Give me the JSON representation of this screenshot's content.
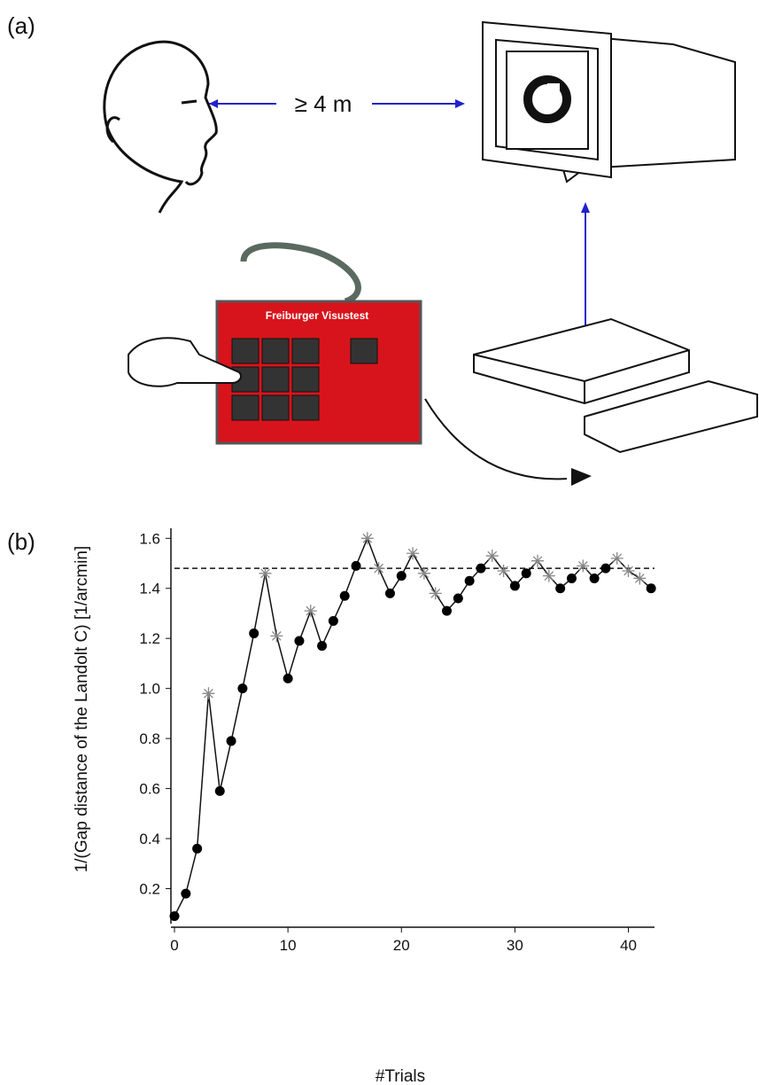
{
  "panel_a": {
    "label": "(a)",
    "distance": "≥ 4 m",
    "keypad_label": "Freiburger Visustest"
  },
  "panel_b": {
    "label": "(b)"
  },
  "chart_data": {
    "type": "line",
    "x_label": "#Trials",
    "y_label": "1/(Gap distance of the Landolt C) [1/arcmin]",
    "x": [
      0,
      1,
      2,
      3,
      4,
      5,
      6,
      7,
      8,
      9,
      10,
      11,
      12,
      13,
      14,
      15,
      16,
      17,
      18,
      19,
      20,
      21,
      22,
      23,
      24,
      25,
      26,
      27,
      28,
      29,
      30,
      31,
      32,
      33,
      34,
      35,
      36,
      37,
      38,
      39,
      40,
      41,
      42
    ],
    "series": [
      {
        "marker": "circle",
        "color": "#000000",
        "values": [
          0.09,
          0.18,
          0.36,
          null,
          0.59,
          0.79,
          1.0,
          1.22,
          null,
          null,
          1.04,
          1.19,
          null,
          1.17,
          1.27,
          1.37,
          1.49,
          null,
          null,
          1.38,
          1.45,
          null,
          null,
          null,
          1.31,
          1.36,
          1.43,
          1.48,
          null,
          null,
          1.41,
          1.46,
          null,
          null,
          1.4,
          1.44,
          null,
          1.44,
          1.48,
          null,
          null,
          null,
          1.4
        ]
      },
      {
        "marker": "asterisk",
        "color": "#888888",
        "values": [
          null,
          null,
          null,
          0.98,
          null,
          null,
          null,
          null,
          1.46,
          1.21,
          null,
          null,
          1.31,
          null,
          null,
          null,
          null,
          1.6,
          1.48,
          null,
          null,
          1.54,
          1.46,
          1.38,
          null,
          null,
          null,
          null,
          1.53,
          1.47,
          null,
          null,
          1.51,
          1.45,
          null,
          null,
          1.49,
          null,
          null,
          1.52,
          1.47,
          1.44,
          null
        ]
      }
    ],
    "reference_line": 1.48,
    "xlim": [
      0,
      42.3
    ],
    "ylim": [
      0.06,
      1.64
    ],
    "xticks": [
      0,
      10,
      20,
      30,
      40
    ],
    "yticks": [
      0.2,
      0.4,
      0.6,
      0.8,
      {
        "value": 1.0,
        "label": "1.0"
      },
      1.2,
      1.4,
      1.6
    ]
  }
}
